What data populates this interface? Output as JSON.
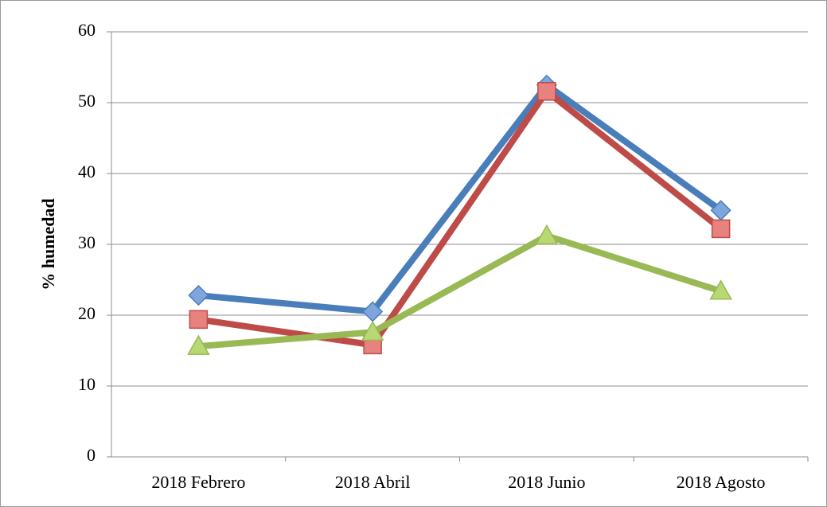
{
  "chart_data": {
    "type": "line",
    "y_label": "% humedad",
    "categories": [
      "2018 Febrero",
      "2018 Abril",
      "2018 Junio",
      "2018 Agosto"
    ],
    "series": [
      {
        "color": "#4a7ebb",
        "marker_color": "#7ea6dc",
        "marker": "diamond",
        "values": [
          22.8,
          20.5,
          52.5,
          34.8
        ]
      },
      {
        "color": "#be4b48",
        "marker_color": "#e8827f",
        "marker": "square",
        "values": [
          19.4,
          15.8,
          51.6,
          32.2
        ]
      },
      {
        "color": "#98b954",
        "marker_color": "#b8d873",
        "marker": "triangle",
        "values": [
          15.6,
          17.6,
          31.2,
          23.4
        ]
      }
    ],
    "ylim": [
      0,
      60
    ],
    "yticks": [
      0,
      10,
      20,
      30,
      40,
      50,
      60
    ],
    "grid": true
  }
}
